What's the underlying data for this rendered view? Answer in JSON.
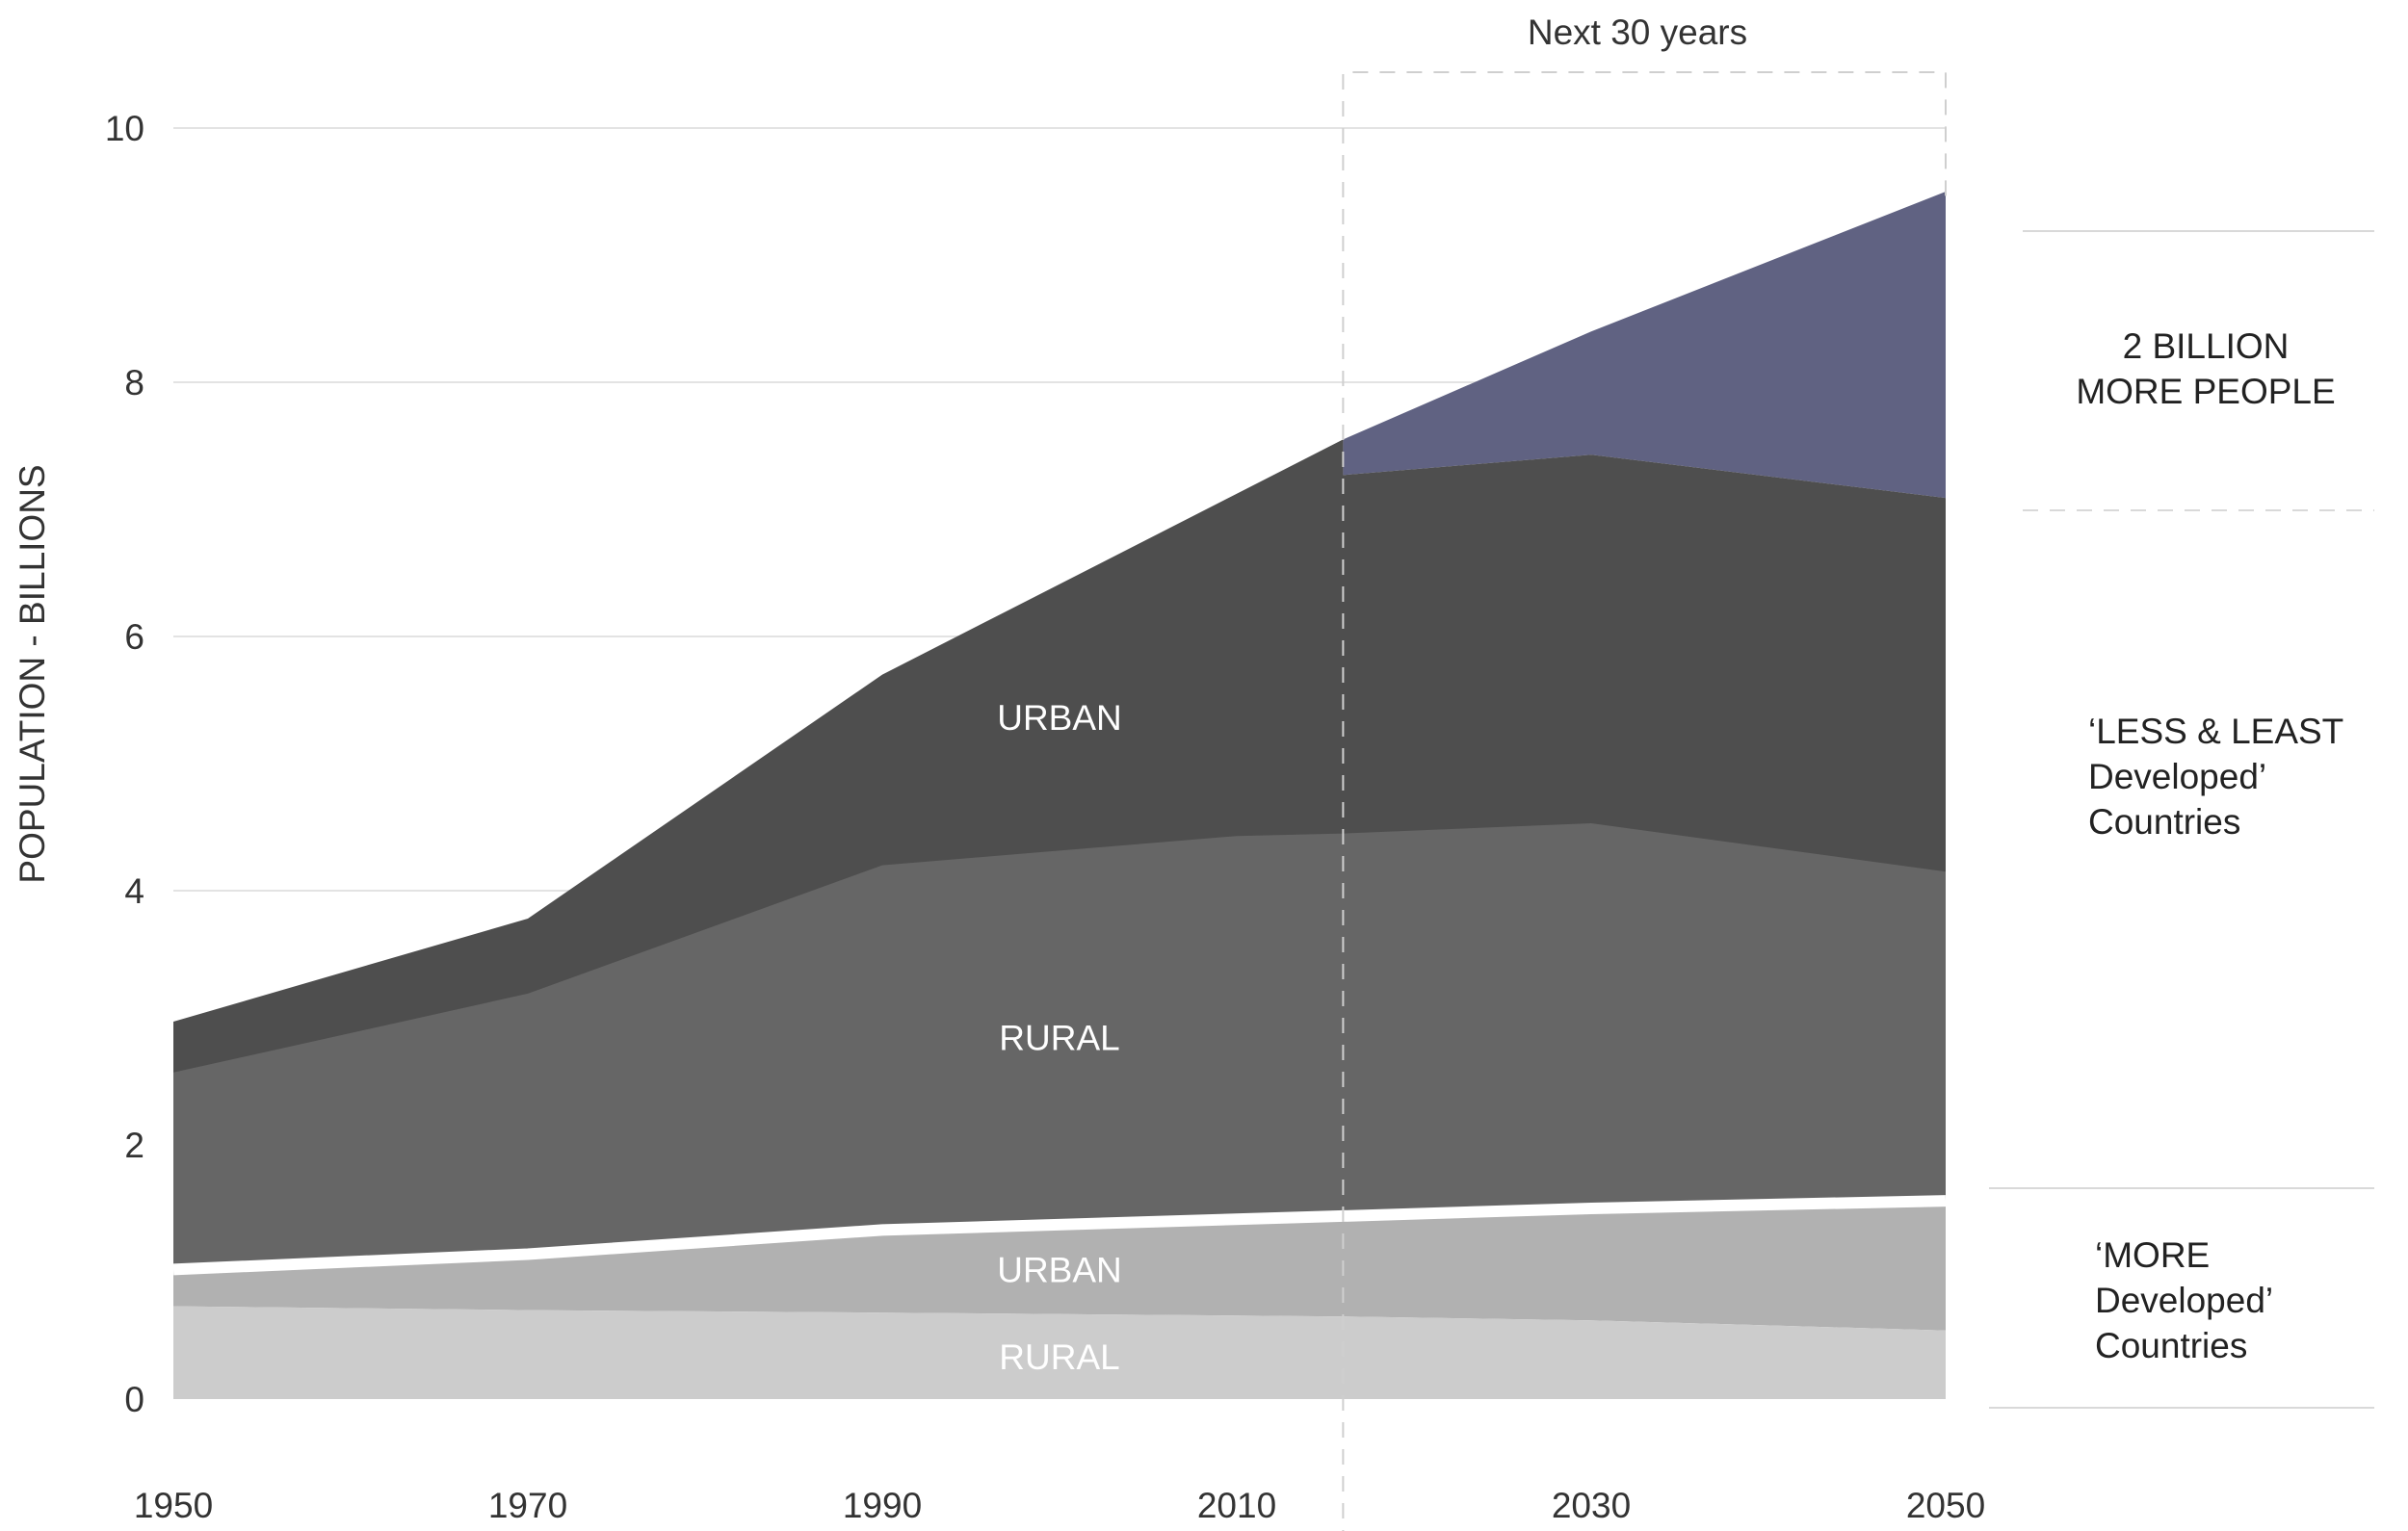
{
  "chart_data": {
    "type": "area",
    "title": "",
    "xlabel": "",
    "ylabel": "POPULATION - BILLIONS",
    "x": [
      1950,
      1970,
      1990,
      2010,
      2030,
      2050
    ],
    "xticks": [
      "1950",
      "1970",
      "1990",
      "2010",
      "2030",
      "2050"
    ],
    "yticks": [
      "0",
      "2",
      "4",
      "6",
      "8",
      "10"
    ],
    "ylim": [
      0,
      10
    ],
    "grid": true,
    "projection_start": 2016,
    "projection_label": "Next 30 years",
    "series_points": {
      "more_rural": [
        [
          1950,
          0.73
        ],
        [
          1970,
          0.7
        ],
        [
          1990,
          0.68
        ],
        [
          2016,
          0.65
        ],
        [
          2030,
          0.62
        ],
        [
          2050,
          0.54
        ]
      ],
      "more_urban": [
        [
          1950,
          1.02
        ],
        [
          1970,
          1.14
        ],
        [
          1990,
          1.33
        ],
        [
          2016,
          1.44
        ],
        [
          2030,
          1.5
        ],
        [
          2050,
          1.56
        ]
      ],
      "less_rural": [
        [
          1950,
          2.57
        ],
        [
          1970,
          3.19
        ],
        [
          1990,
          4.2
        ],
        [
          2010,
          4.43
        ],
        [
          2016,
          4.45
        ],
        [
          2030,
          4.53
        ],
        [
          2050,
          4.15
        ]
      ],
      "less_urban": [
        [
          1950,
          2.97
        ],
        [
          1970,
          3.78
        ],
        [
          1990,
          5.7
        ],
        [
          2016,
          7.55
        ]
      ],
      "less_urban_projected": [
        [
          2016,
          7.27
        ],
        [
          2030,
          7.43
        ],
        [
          2050,
          7.09
        ]
      ],
      "total_projected": [
        [
          2016,
          7.55
        ],
        [
          2030,
          8.4
        ],
        [
          2050,
          9.5
        ]
      ]
    },
    "colors": {
      "more_rural": "#cccccc",
      "more_urban": "#b1b1b1",
      "less_rural": "#666666",
      "less_urban": "#4e4e4e",
      "growth": "#606282",
      "grid": "#e3e3e3",
      "dashed": "#cfcfcf"
    },
    "band_labels": {
      "less_urban": "URBAN",
      "less_rural": "RURAL",
      "more_urban": "URBAN",
      "more_rural": "RURAL"
    },
    "side_labels": {
      "growth": [
        "2 BILLION",
        "MORE PEOPLE"
      ],
      "less_developed": [
        "‘LESS & LEAST",
        "Developed’",
        "Countries"
      ],
      "more_developed": [
        "‘MORE",
        "Developed’",
        "Countries"
      ]
    }
  }
}
